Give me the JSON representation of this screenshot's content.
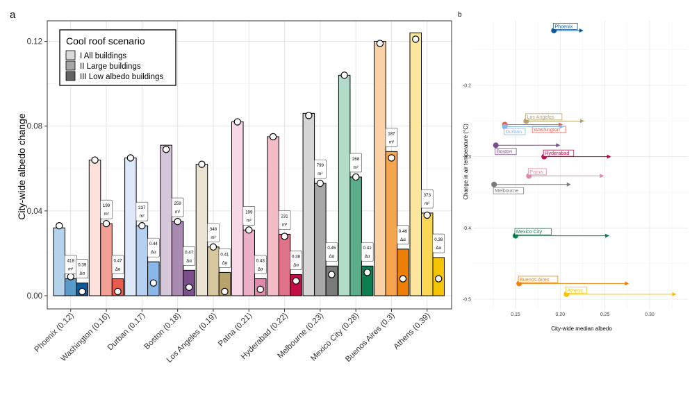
{
  "panel_labels": {
    "a": "a",
    "b": "b"
  },
  "chart_data": [
    {
      "type": "bar",
      "panel": "a",
      "title": "",
      "xlabel": "",
      "ylabel": "City-wide albedo change",
      "ylim": [
        0,
        0.13
      ],
      "yticks": [
        0.0,
        0.04,
        0.08,
        0.12
      ],
      "ytick_labels": [
        "0.00",
        "0.04",
        "0.08",
        "0.12"
      ],
      "legend": {
        "title": "Cool roof scenario",
        "position": "top-left",
        "entries": [
          "I All buildings",
          "II Large buildings",
          "III Low albedo buildings"
        ]
      },
      "categories": [
        "Phoenix (0.12)",
        "Washington (0.16)",
        "Durban (0.17)",
        "Boston (0.18)",
        "Los Angeles (0.19)",
        "Patna (0.21)",
        "Hyderabad (0.22)",
        "Melbourne (0.23)",
        "Mexico City (0.28)",
        "Buenos Aires (0.3)",
        "Athens (0.39)"
      ],
      "colors": [
        [
          "#b4d3ea",
          "#5b9bc8",
          "#0b5a9a"
        ],
        [
          "#fde2db",
          "#f3a195",
          "#e65d4e"
        ],
        [
          "#dde9f8",
          "#b4d1f1",
          "#8ab7e8"
        ],
        [
          "#d6c6da",
          "#a98bb2",
          "#7a4f8a"
        ],
        [
          "#ebe4d3",
          "#d7c8a0",
          "#b8a36c"
        ],
        [
          "#f6d9e5",
          "#ebb0c6",
          "#df8aa9"
        ],
        [
          "#f1bcc6",
          "#e0738a",
          "#c30d45"
        ],
        [
          "#d6d6d6",
          "#a8a8a8",
          "#7a7a7a"
        ],
        [
          "#b3dcc8",
          "#5cad8a",
          "#0a7f4f"
        ],
        [
          "#fbd2a8",
          "#f6a54f",
          "#ee7f06"
        ],
        [
          "#fde79c",
          "#fbd753",
          "#f5c400"
        ]
      ],
      "series": [
        {
          "name": "I All buildings",
          "values": [
            0.032,
            0.064,
            0.065,
            0.071,
            0.062,
            0.082,
            0.075,
            0.086,
            0.104,
            0.12,
            0.124
          ],
          "markers": [
            0.033,
            0.064,
            0.065,
            0.069,
            0.062,
            0.082,
            0.075,
            0.085,
            0.104,
            0.119,
            0.121
          ]
        },
        {
          "name": "II Large buildings",
          "values": [
            0.008,
            0.034,
            0.033,
            0.035,
            0.023,
            0.031,
            0.029,
            0.053,
            0.056,
            0.068,
            0.039
          ],
          "markers": [
            0.009,
            0.034,
            0.033,
            0.035,
            0.023,
            0.031,
            0.028,
            0.053,
            0.056,
            0.065,
            0.038
          ],
          "labels_top": [
            "418",
            "199",
            "237",
            "259",
            "348",
            "199",
            "231",
            "799",
            "268",
            "187",
            "373"
          ],
          "labels_bottom": [
            "m²",
            "m²",
            "m²",
            "m²",
            "m²",
            "m²",
            "m²",
            "m²",
            "m²",
            "m²",
            "m²"
          ]
        },
        {
          "name": "III Low albedo buildings",
          "values": [
            0.006,
            0.008,
            0.016,
            0.012,
            0.011,
            0.008,
            0.01,
            0.014,
            0.014,
            0.022,
            0.018
          ],
          "markers": [
            0.002,
            0.002,
            0.006,
            0.004,
            0.002,
            0.003,
            0.007,
            0.01,
            0.011,
            0.008,
            0.008
          ],
          "labels_top": [
            "0.39",
            "0.47",
            "0.44",
            "0.47",
            "0.41",
            "0.43",
            "0.38",
            "0.45",
            "0.41",
            "0.46",
            "0.38"
          ],
          "labels_bottom": [
            "Δα",
            "Δα",
            "Δα",
            "Δα",
            "Δα",
            "Δα",
            "Δα",
            "Δα",
            "Δα",
            "Δα",
            "Δα"
          ]
        }
      ]
    },
    {
      "type": "scatter",
      "panel": "b",
      "title": "",
      "xlabel": "City-wide median albedo",
      "ylabel": "Change in air temperature (°C)",
      "xlim": [
        0.12,
        0.335
      ],
      "ylim": [
        -0.515,
        -0.09
      ],
      "xticks": [
        0.15,
        0.2,
        0.25,
        0.3
      ],
      "xtick_labels": [
        "0.15",
        "0.20",
        "0.25",
        "0.30"
      ],
      "yticks": [
        -0.2,
        -0.3,
        -0.4,
        -0.5
      ],
      "ytick_labels": [
        "-0.2",
        "-0.3",
        "-0.4",
        "-0.5"
      ],
      "series": [
        {
          "name": "Phoenix",
          "x_start": 0.193,
          "x_end": 0.226,
          "y": -0.123,
          "color": "#0b5a9a"
        },
        {
          "name": "Los Angeles",
          "x_start": 0.162,
          "x_end": 0.227,
          "y": -0.25,
          "color": "#b8a36c"
        },
        {
          "name": "Washington",
          "x_start": 0.138,
          "x_end": 0.203,
          "y": -0.255,
          "color": "#e65d4e"
        },
        {
          "name": "Durban",
          "x_start": 0.138,
          "x_end": 0.204,
          "y": -0.258,
          "color": "#8ab7e8"
        },
        {
          "name": "Boston",
          "x_start": 0.128,
          "x_end": 0.2,
          "y": -0.284,
          "color": "#7a4f8a"
        },
        {
          "name": "Hyderabad",
          "x_start": 0.182,
          "x_end": 0.257,
          "y": -0.3,
          "color": "#c30d45"
        },
        {
          "name": "Patna",
          "x_start": 0.165,
          "x_end": 0.249,
          "y": -0.327,
          "color": "#df8aa9"
        },
        {
          "name": "Melbourne",
          "x_start": 0.126,
          "x_end": 0.212,
          "y": -0.339,
          "color": "#7a7a7a"
        },
        {
          "name": "Mexico City",
          "x_start": 0.15,
          "x_end": 0.255,
          "y": -0.411,
          "color": "#0a7f4f"
        },
        {
          "name": "Buenos Aires",
          "x_start": 0.154,
          "x_end": 0.277,
          "y": -0.478,
          "color": "#ee7f06"
        },
        {
          "name": "Athens",
          "x_start": 0.207,
          "x_end": 0.33,
          "y": -0.493,
          "color": "#f5c400"
        }
      ]
    }
  ]
}
